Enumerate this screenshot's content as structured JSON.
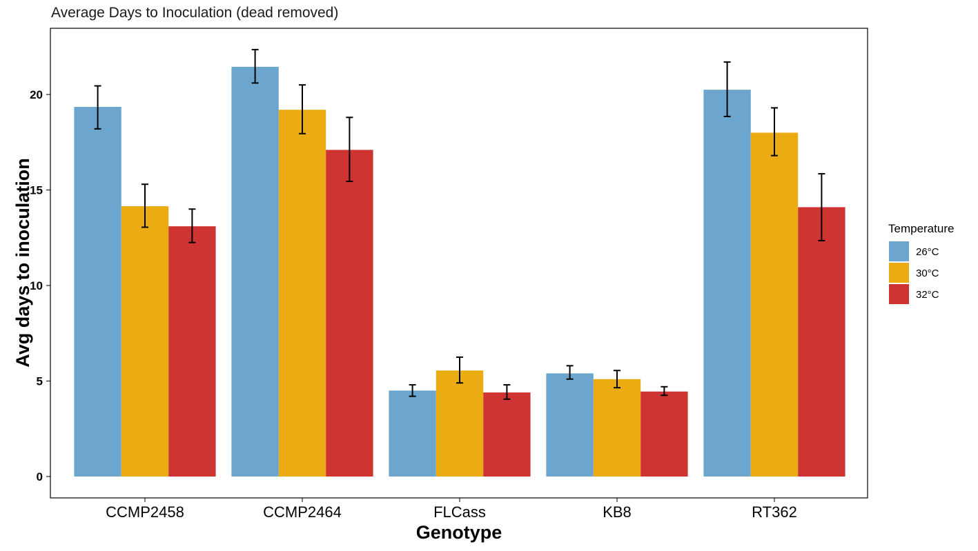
{
  "chart_data": {
    "type": "bar",
    "title": "Average Days to Inoculation (dead removed)",
    "xlabel": "Genotype",
    "ylabel": "Avg days to inoculation",
    "categories": [
      "CCMP2458",
      "CCMP2464",
      "FLCass",
      "KB8",
      "RT362"
    ],
    "ylim": [
      0,
      23.5
    ],
    "yticks": [
      0,
      5,
      10,
      15,
      20
    ],
    "legend": {
      "title": "Temperature",
      "position": "right"
    },
    "grid": false,
    "series": [
      {
        "name": "26°C",
        "color": "#6CA6CE",
        "values": [
          19.35,
          21.45,
          4.5,
          5.4,
          20.25
        ],
        "err_low": [
          18.2,
          20.6,
          4.2,
          5.1,
          18.85
        ],
        "err_high": [
          20.45,
          22.35,
          4.8,
          5.8,
          21.7
        ]
      },
      {
        "name": "30°C",
        "color": "#EBAB12",
        "values": [
          14.15,
          19.2,
          5.55,
          5.1,
          18.0
        ],
        "err_low": [
          13.05,
          17.95,
          4.9,
          4.65,
          16.8
        ],
        "err_high": [
          15.3,
          20.5,
          6.25,
          5.55,
          19.3
        ]
      },
      {
        "name": "32°C",
        "color": "#CE3432",
        "values": [
          13.1,
          17.1,
          4.4,
          4.45,
          14.1
        ],
        "err_low": [
          12.25,
          15.45,
          4.05,
          4.25,
          12.35
        ],
        "err_high": [
          14.0,
          18.8,
          4.8,
          4.7,
          15.85
        ]
      }
    ]
  }
}
